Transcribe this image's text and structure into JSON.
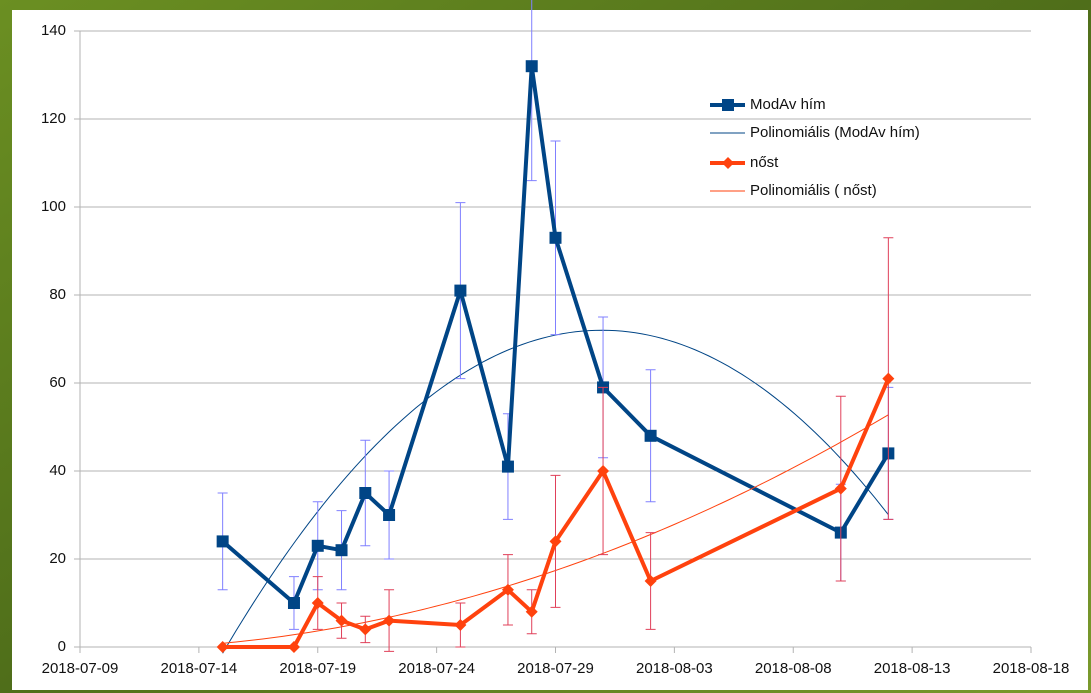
{
  "chart_data": {
    "type": "line",
    "x": [
      "2018-07-15",
      "2018-07-18",
      "2018-07-19",
      "2018-07-20",
      "2018-07-21",
      "2018-07-22",
      "2018-07-25",
      "2018-07-27",
      "2018-07-28",
      "2018-07-29",
      "2018-07-31",
      "2018-08-02",
      "2018-08-10",
      "2018-08-12"
    ],
    "series": [
      {
        "name": "ModAv hím",
        "color": "#004586",
        "marker": "square",
        "values": [
          24,
          10,
          23,
          22,
          35,
          30,
          81,
          41,
          132,
          93,
          59,
          48,
          26,
          44
        ],
        "errors": [
          11,
          6,
          10,
          9,
          12,
          10,
          20,
          12,
          26,
          22,
          16,
          15,
          11,
          15
        ],
        "error_color": "#8080ff",
        "trendline": {
          "name": "Polinomiális (ModAv hím)",
          "degree": 2
        }
      },
      {
        "name": " nőst",
        "color": "#ff420e",
        "marker": "diamond",
        "values": [
          0,
          0,
          10,
          6,
          4,
          6,
          5,
          13,
          8,
          24,
          40,
          15,
          36,
          61
        ],
        "errors": [
          0,
          0,
          6,
          4,
          3,
          7,
          5,
          8,
          5,
          15,
          19,
          11,
          21,
          32
        ],
        "error_color": "#e0405a",
        "trendline": {
          "name": "Polinomiális ( nőst)",
          "degree": 2
        }
      }
    ],
    "xlim": [
      "2018-07-09",
      "2018-08-18"
    ],
    "xticks": [
      "2018-07-09",
      "2018-07-14",
      "2018-07-19",
      "2018-07-24",
      "2018-07-29",
      "2018-08-03",
      "2018-08-08",
      "2018-08-13",
      "2018-08-18"
    ],
    "ylim": [
      0,
      140
    ],
    "yticks": [
      0,
      20,
      40,
      60,
      80,
      100,
      120,
      140
    ],
    "grid": true,
    "legend": "top-right"
  }
}
